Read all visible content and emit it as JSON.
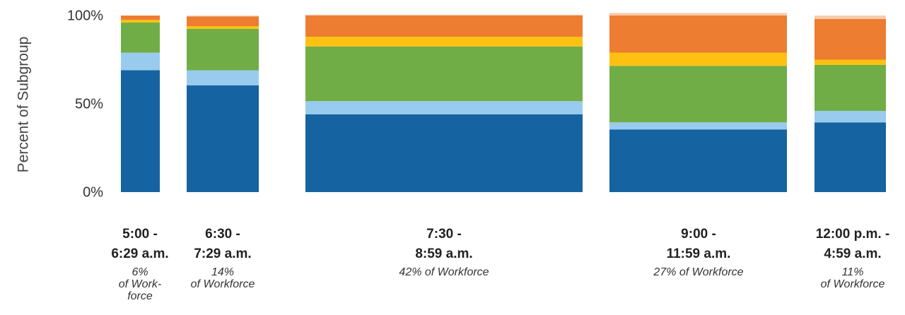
{
  "chart_data": {
    "type": "bar",
    "subtype": "variable-width stacked 100% (marimekko)",
    "ylabel": "Percent of Subgroup",
    "ylim": [
      0,
      100
    ],
    "yticks": [
      "0%",
      "50%",
      "100%"
    ],
    "ytick_values": [
      0,
      50,
      100
    ],
    "legend": "none",
    "grid": false,
    "categories": [
      {
        "label_lines": [
          "5:00 -",
          "6:29 a.m."
        ],
        "share_lines": [
          "6%",
          "of Work-",
          "force"
        ],
        "workforce_pct": 6,
        "segments": [
          69,
          10,
          17,
          1.5,
          2.5,
          0
        ]
      },
      {
        "label_lines": [
          "6:30 -",
          "7:29 a.m."
        ],
        "share_lines": [
          "14%",
          "of Workforce"
        ],
        "workforce_pct": 14,
        "segments": [
          60.5,
          8.5,
          23.5,
          1.5,
          5.5,
          0.5
        ]
      },
      {
        "label_lines": [
          "7:30 -",
          "8:59 a.m."
        ],
        "share_lines": [
          "42% of Workforce"
        ],
        "workforce_pct": 42,
        "segments": [
          44,
          7.5,
          31,
          5.5,
          12,
          0.5
        ]
      },
      {
        "label_lines": [
          "9:00 -",
          "11:59 a.m."
        ],
        "share_lines": [
          "27% of Workforce"
        ],
        "workforce_pct": 27,
        "segments": [
          35.5,
          4,
          32,
          7.5,
          21,
          1.5
        ]
      },
      {
        "label_lines": [
          "12:00 p.m. -",
          "4:59 a.m."
        ],
        "share_lines": [
          "11%",
          "of Workforce"
        ],
        "workforce_pct": 11,
        "segments": [
          39.5,
          6.5,
          26,
          3,
          23,
          2
        ]
      }
    ],
    "segment_colors": [
      "#1563a0",
      "#99cbee",
      "#71ad47",
      "#fec112",
      "#ed7d31",
      "#f8cbad"
    ]
  }
}
